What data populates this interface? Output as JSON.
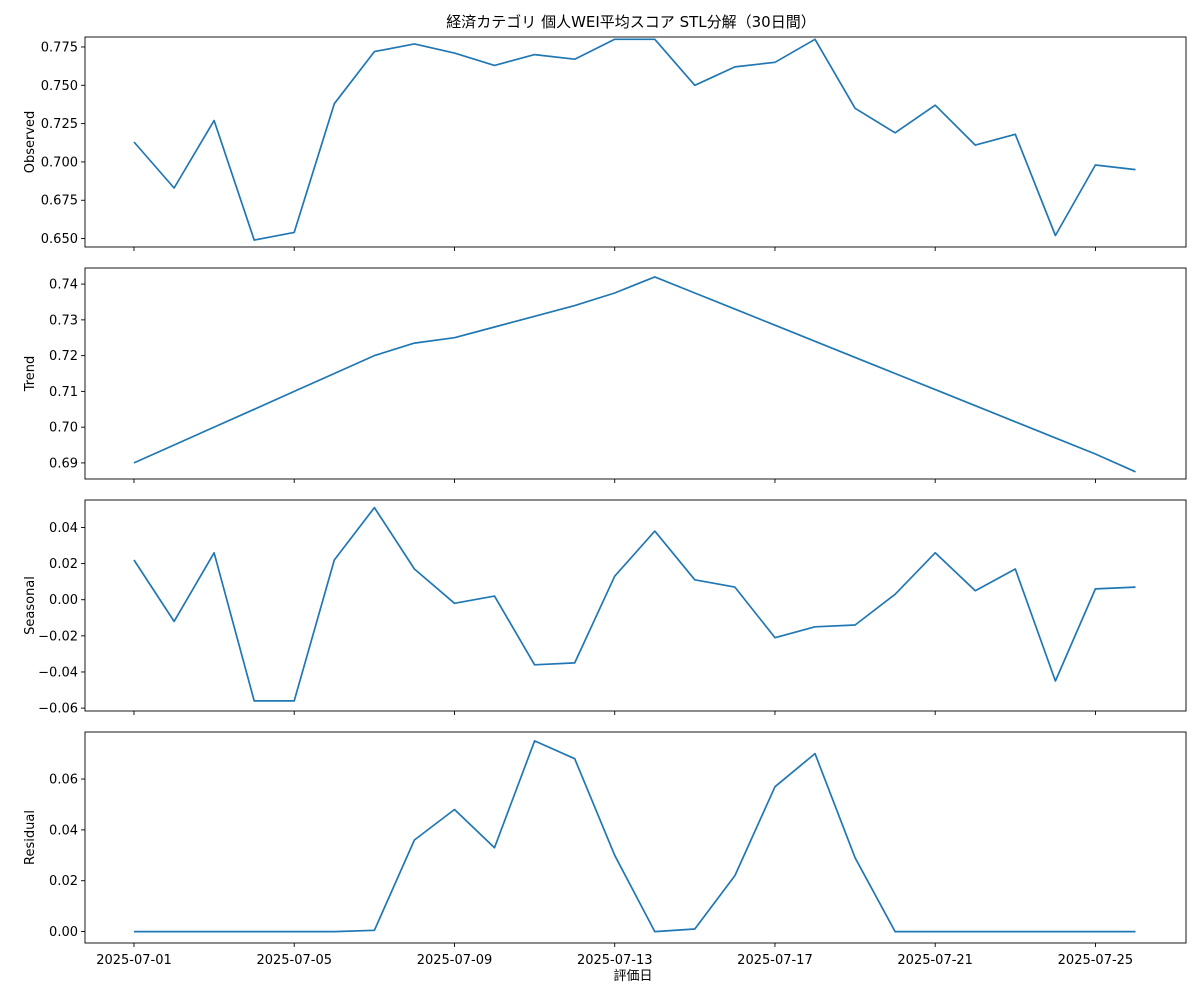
{
  "chart_data": {
    "type": "line",
    "title": "経済カテゴリ 個人WEI平均スコア STL分解（30日間）",
    "xlabel": "評価日",
    "x_tick_labels": [
      "2025-07-01",
      "2025-07-05",
      "2025-07-09",
      "2025-07-13",
      "2025-07-17",
      "2025-07-21",
      "2025-07-25"
    ],
    "x": [
      "2025-07-01",
      "2025-07-02",
      "2025-07-03",
      "2025-07-04",
      "2025-07-05",
      "2025-07-06",
      "2025-07-07",
      "2025-07-08",
      "2025-07-09",
      "2025-07-10",
      "2025-07-11",
      "2025-07-12",
      "2025-07-13",
      "2025-07-14",
      "2025-07-15",
      "2025-07-16",
      "2025-07-17",
      "2025-07-18",
      "2025-07-19",
      "2025-07-20",
      "2025-07-21",
      "2025-07-22",
      "2025-07-23",
      "2025-07-24",
      "2025-07-25",
      "2025-07-26"
    ],
    "line_color": "#1f77b4",
    "grid": false,
    "panels": [
      {
        "ylabel": "Observed",
        "ylim": [
          0.6445,
          0.7815
        ],
        "yticks": [
          0.65,
          0.675,
          0.7,
          0.725,
          0.75,
          0.775
        ],
        "ytick_labels": [
          "0.650",
          "0.675",
          "0.700",
          "0.725",
          "0.750",
          "0.775"
        ],
        "values": [
          0.713,
          0.683,
          0.727,
          0.649,
          0.654,
          0.738,
          0.772,
          0.777,
          0.771,
          0.763,
          0.77,
          0.767,
          0.78,
          0.78,
          0.75,
          0.762,
          0.765,
          0.78,
          0.735,
          0.719,
          0.737,
          0.711,
          0.718,
          0.652,
          0.698,
          0.695
        ]
      },
      {
        "ylabel": "Trend",
        "ylim": [
          0.6855,
          0.7445
        ],
        "yticks": [
          0.69,
          0.7,
          0.71,
          0.72,
          0.73,
          0.74
        ],
        "ytick_labels": [
          "0.69",
          "0.70",
          "0.71",
          "0.72",
          "0.73",
          "0.74"
        ],
        "values": [
          0.69,
          0.695,
          0.7,
          0.705,
          0.71,
          0.715,
          0.72,
          0.7235,
          0.725,
          0.728,
          0.731,
          0.734,
          0.7375,
          0.742,
          0.7375,
          0.733,
          0.7285,
          0.724,
          0.7195,
          0.715,
          0.7105,
          0.706,
          0.7015,
          0.697,
          0.6925,
          0.6875
        ]
      },
      {
        "ylabel": "Seasonal",
        "ylim": [
          -0.0616,
          0.0552
        ],
        "yticks": [
          -0.06,
          -0.04,
          -0.02,
          0.0,
          0.02,
          0.04
        ],
        "ytick_labels": [
          "−0.06",
          "−0.04",
          "−0.02",
          "0.00",
          "0.02",
          "0.04"
        ],
        "values": [
          0.022,
          -0.012,
          0.026,
          -0.056,
          -0.056,
          0.022,
          0.051,
          0.017,
          -0.002,
          0.002,
          -0.036,
          -0.035,
          0.013,
          0.038,
          0.011,
          0.007,
          -0.021,
          -0.015,
          -0.014,
          0.003,
          0.026,
          0.005,
          0.017,
          -0.045,
          0.006,
          0.007
        ]
      },
      {
        "ylabel": "Residual",
        "ylim": [
          -0.0045,
          0.0785
        ],
        "yticks": [
          0.0,
          0.02,
          0.04,
          0.06
        ],
        "ytick_labels": [
          "0.00",
          "0.02",
          "0.04",
          "0.06"
        ],
        "values": [
          0.0,
          0.0,
          0.0,
          0.0,
          0.0,
          0.0,
          0.0005,
          0.036,
          0.048,
          0.033,
          0.075,
          0.068,
          0.03,
          0.0,
          0.001,
          0.022,
          0.057,
          0.07,
          0.029,
          0.0,
          0.0,
          0.0,
          0.0,
          0.0,
          0.0,
          0.0
        ]
      }
    ]
  }
}
